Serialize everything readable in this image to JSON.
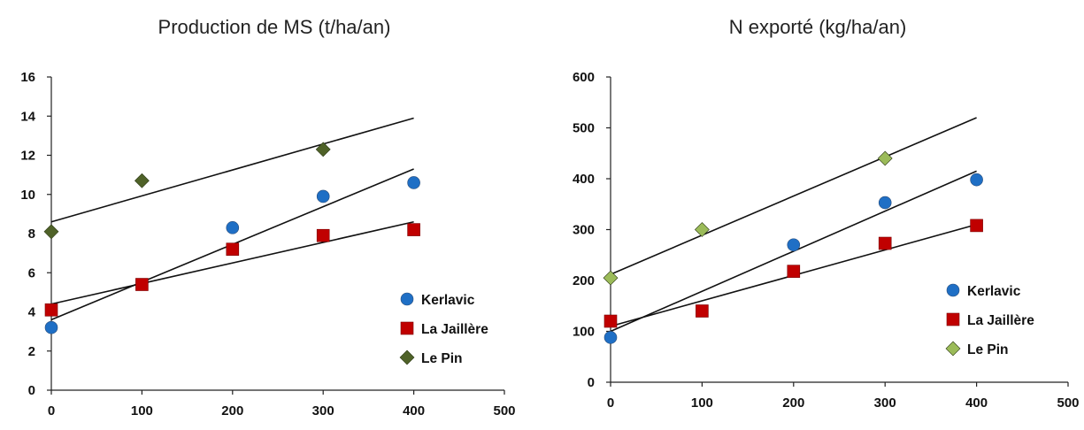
{
  "chart_data": [
    {
      "type": "scatter",
      "title": "Production de MS (t/ha/an)",
      "xlabel": "",
      "ylabel": "",
      "xlim": [
        0,
        500
      ],
      "ylim": [
        0,
        16
      ],
      "xticks": [
        0,
        100,
        200,
        300,
        400,
        500
      ],
      "yticks": [
        0,
        2,
        4,
        6,
        8,
        10,
        12,
        14,
        16
      ],
      "grid": false,
      "legend_position": "bottom-right",
      "series": [
        {
          "name": "Kerlavic",
          "marker": "circle",
          "color": "#1f6fc5",
          "trendline": true,
          "points": [
            [
              0,
              3.2
            ],
            [
              200,
              8.3
            ],
            [
              300,
              9.9
            ],
            [
              400,
              10.6
            ]
          ]
        },
        {
          "name": "La Jaillère",
          "marker": "square",
          "color": "#c00000",
          "trendline": true,
          "points": [
            [
              0,
              4.1
            ],
            [
              100,
              5.4
            ],
            [
              200,
              7.2
            ],
            [
              300,
              7.9
            ],
            [
              400,
              8.2
            ]
          ]
        },
        {
          "name": "Le Pin",
          "marker": "diamond",
          "color": "#4f6228",
          "trendline": true,
          "points": [
            [
              0,
              8.1
            ],
            [
              100,
              10.7
            ],
            [
              300,
              12.3
            ]
          ]
        }
      ],
      "trendlines": [
        {
          "series": "Le Pin",
          "from": [
            0,
            8.6
          ],
          "to": [
            400,
            13.9
          ]
        },
        {
          "series": "Kerlavic",
          "from": [
            0,
            3.6
          ],
          "to": [
            400,
            11.3
          ]
        },
        {
          "series": "La Jaillère",
          "from": [
            0,
            4.4
          ],
          "to": [
            400,
            8.6
          ]
        }
      ]
    },
    {
      "type": "scatter",
      "title": "N exporté (kg/ha/an)",
      "xlabel": "",
      "ylabel": "",
      "xlim": [
        0,
        500
      ],
      "ylim": [
        0,
        600
      ],
      "xticks": [
        0,
        100,
        200,
        300,
        400,
        500
      ],
      "yticks": [
        0,
        100,
        200,
        300,
        400,
        500,
        600
      ],
      "grid": false,
      "legend_position": "bottom-right",
      "series": [
        {
          "name": "Kerlavic",
          "marker": "circle",
          "color": "#1f6fc5",
          "trendline": true,
          "points": [
            [
              0,
              88
            ],
            [
              200,
              270
            ],
            [
              300,
              353
            ],
            [
              400,
              398
            ]
          ]
        },
        {
          "name": "La Jaillère",
          "marker": "square",
          "color": "#c00000",
          "trendline": true,
          "points": [
            [
              0,
              120
            ],
            [
              100,
              140
            ],
            [
              200,
              218
            ],
            [
              300,
              273
            ],
            [
              400,
              308
            ]
          ]
        },
        {
          "name": "Le Pin",
          "marker": "diamond",
          "color": "#9bbb59",
          "trendline": true,
          "points": [
            [
              0,
              205
            ],
            [
              100,
              300
            ],
            [
              300,
              440
            ]
          ]
        }
      ],
      "trendlines": [
        {
          "series": "Le Pin",
          "from": [
            0,
            212
          ],
          "to": [
            400,
            520
          ]
        },
        {
          "series": "Kerlavic",
          "from": [
            0,
            100
          ],
          "to": [
            400,
            415
          ]
        },
        {
          "series": "La Jaillère",
          "from": [
            0,
            110
          ],
          "to": [
            400,
            310
          ]
        }
      ]
    }
  ]
}
